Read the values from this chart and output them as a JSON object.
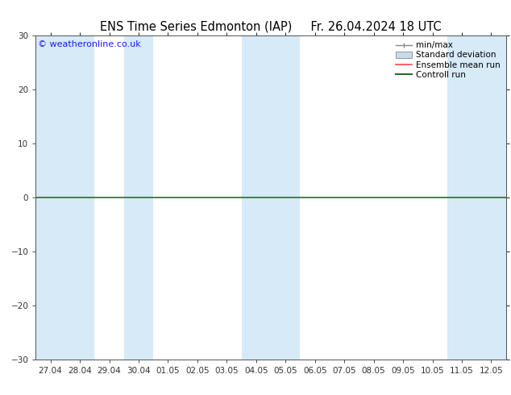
{
  "title_left": "ENS Time Series Edmonton (IAP)",
  "title_right": "Fr. 26.04.2024 18 UTC",
  "watermark": "© weatheronline.co.uk",
  "ylim": [
    -30,
    30
  ],
  "yticks": [
    -30,
    -20,
    -10,
    0,
    10,
    20,
    30
  ],
  "x_labels": [
    "27.04",
    "28.04",
    "29.04",
    "30.04",
    "01.05",
    "02.05",
    "03.05",
    "04.05",
    "05.05",
    "06.05",
    "07.05",
    "08.05",
    "09.05",
    "10.05",
    "11.05",
    "12.05"
  ],
  "shaded_columns": [
    0,
    1,
    3,
    7,
    8,
    14,
    15
  ],
  "shade_color": "#d6eaf8",
  "background_color": "#ffffff",
  "zero_line_color": "#2d6a2d",
  "title_fontsize": 10.5,
  "tick_fontsize": 7.5,
  "watermark_color": "#1a1aff",
  "watermark_fontsize": 8,
  "legend_fontsize": 7.5,
  "spine_color": "#555555",
  "ytick_color": "#333333"
}
